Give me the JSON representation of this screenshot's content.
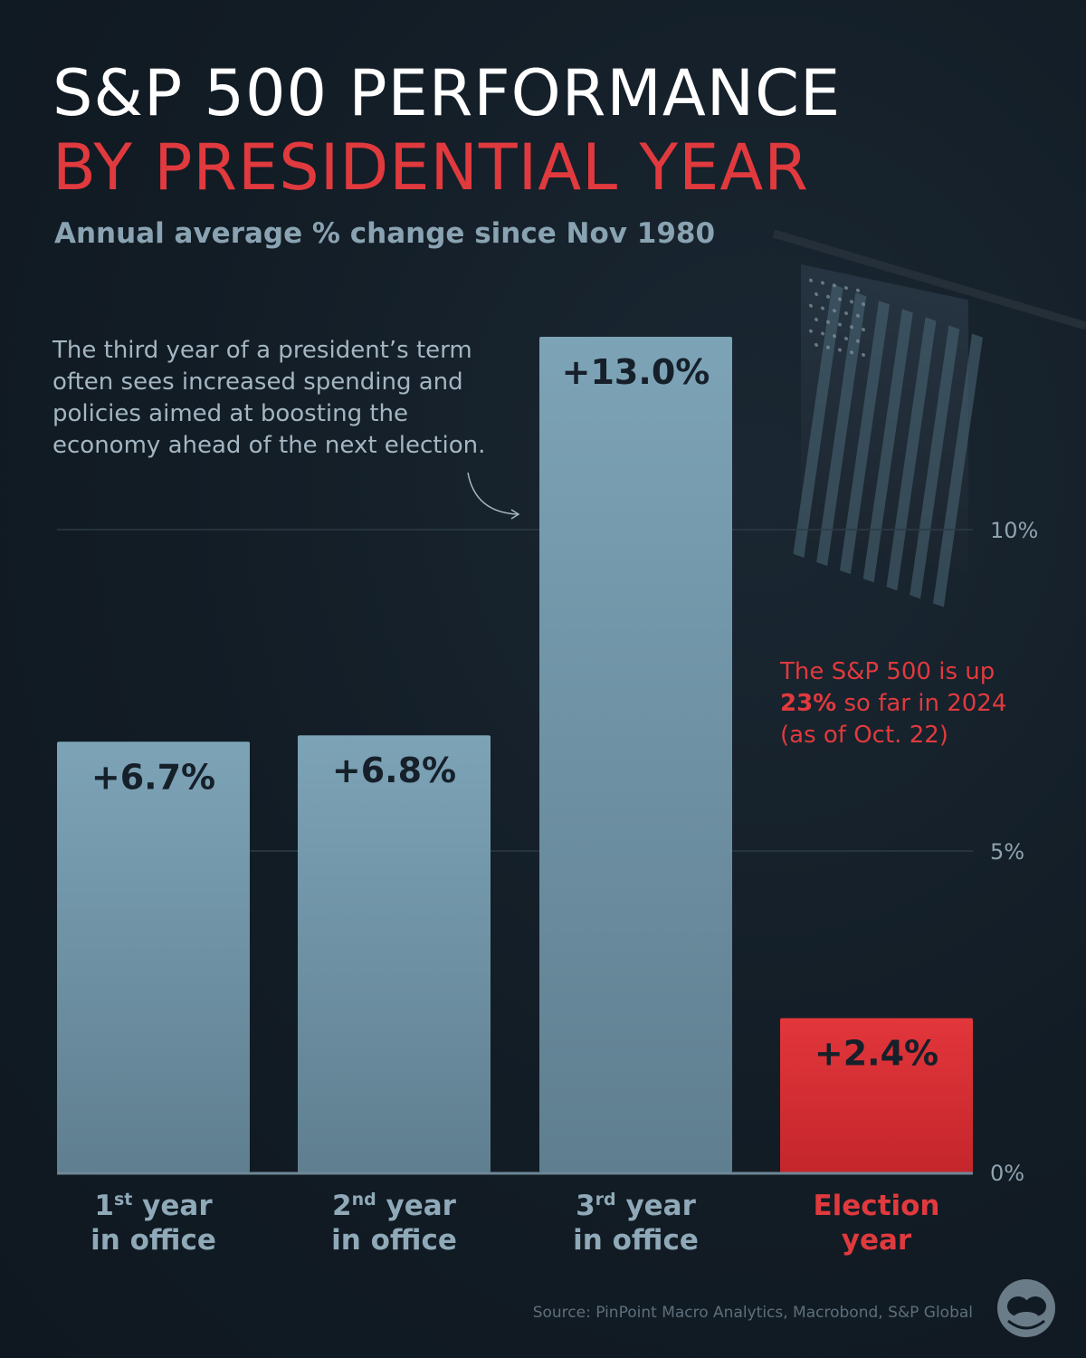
{
  "header": {
    "title_line1": "S&P 500 PERFORMANCE",
    "title_line2": "BY PRESIDENTIAL YEAR",
    "subtitle": "Annual average % change since Nov 1980"
  },
  "annotation": "The third year of a president’s term often sees increased spending and policies aimed at boosting the economy ahead of the next election.",
  "note_2024": {
    "line1": "The S&P 500 is up",
    "highlight": "23%",
    "line2_rest": " so far in 2024",
    "line3": "(as of Oct. 22)"
  },
  "source": "Source: PinPoint Macro Analytics, Macrobond, S&P Global",
  "colors": {
    "background": "#121c25",
    "bar_top": "#7da3b7",
    "bar_bottom": "#5f7f90",
    "highlight": "#e03a3e",
    "category_label": "#8fa9b8",
    "grid": "#2c3a45"
  },
  "icons": [
    "american-flag-icon",
    "visual-capitalist-logo-icon"
  ],
  "chart_data": {
    "type": "bar",
    "title": "S&P 500 PERFORMANCE BY PRESIDENTIAL YEAR",
    "subtitle": "Annual average % change since Nov 1980",
    "categories": [
      {
        "sup_prefix": "1",
        "sup": "st",
        "rest": " year",
        "line2": "in office"
      },
      {
        "sup_prefix": "2",
        "sup": "nd",
        "rest": " year",
        "line2": "in office"
      },
      {
        "sup_prefix": "3",
        "sup": "rd",
        "rest": " year",
        "line2": "in office"
      },
      {
        "sup_prefix": "",
        "sup": "",
        "rest": "Election",
        "line2": "year"
      }
    ],
    "values": [
      6.7,
      6.8,
      13.0,
      2.4
    ],
    "value_labels": [
      "+6.7%",
      "+6.8%",
      "+13.0%",
      "+2.4%"
    ],
    "highlight_index": 3,
    "ylim": [
      0,
      13
    ],
    "yticks": [
      0,
      5,
      10
    ],
    "ytick_labels": [
      "0%",
      "5%",
      "10%"
    ],
    "grid": true,
    "legend": "none"
  }
}
